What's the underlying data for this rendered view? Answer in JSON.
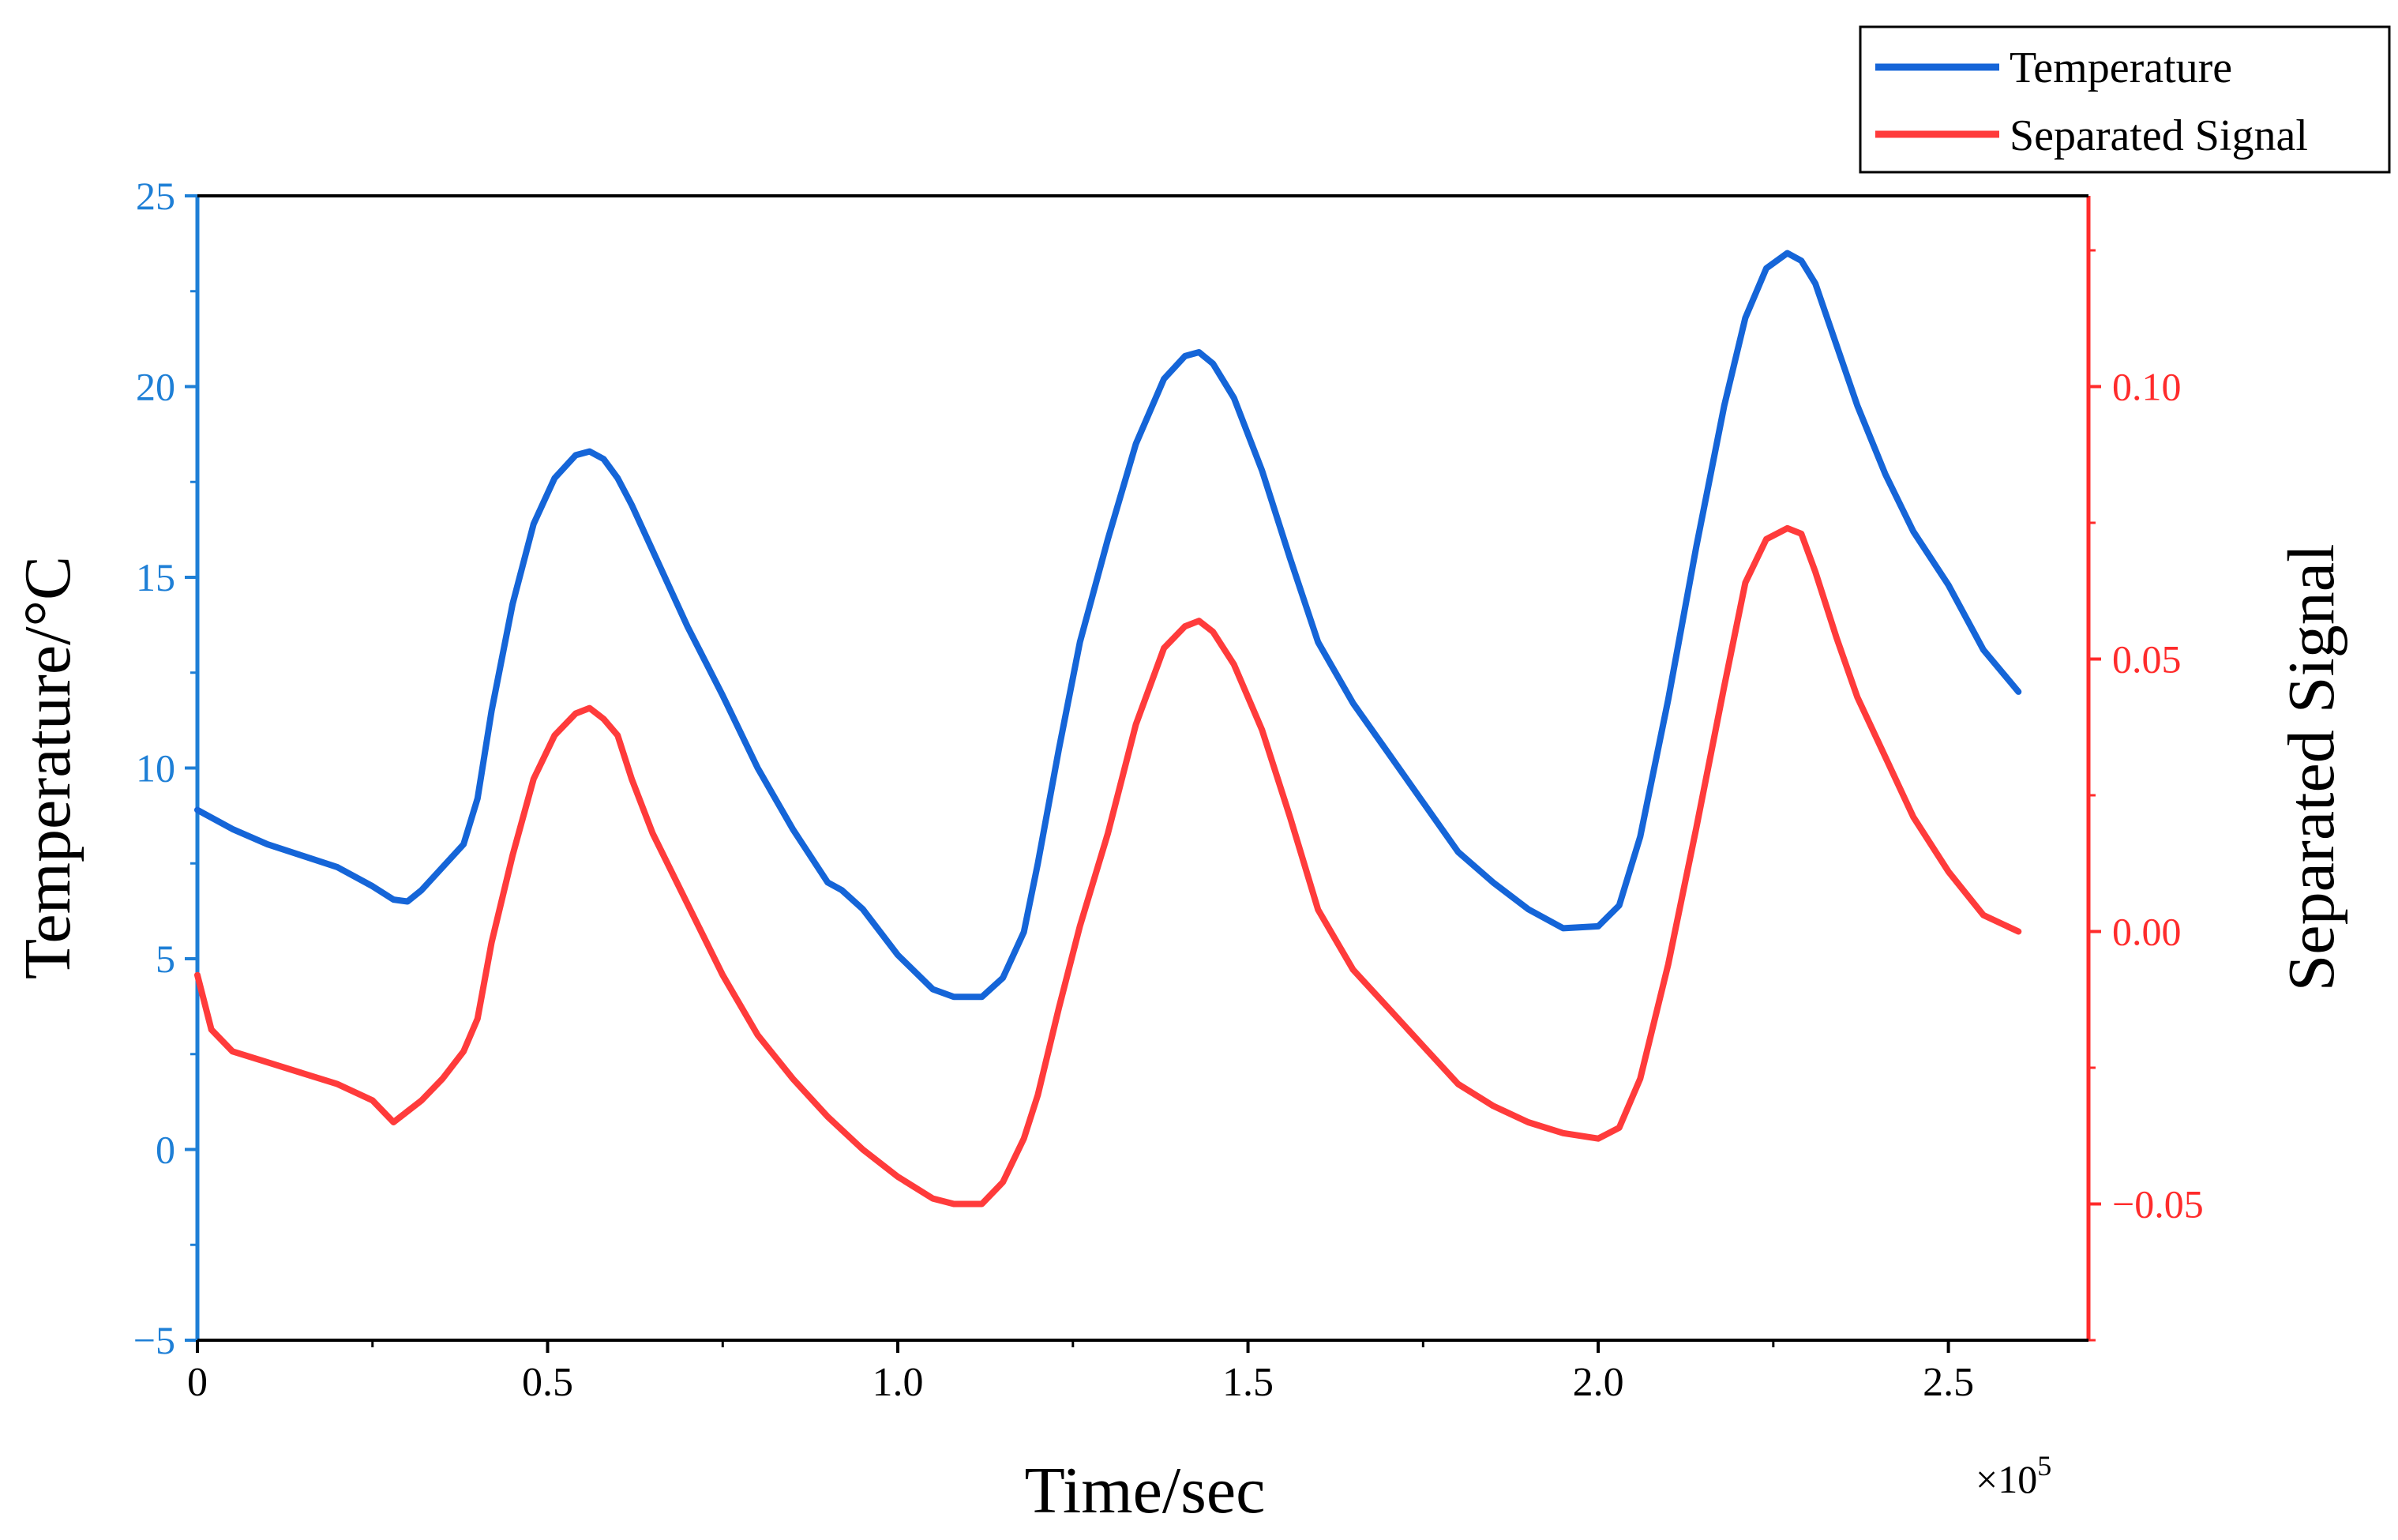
{
  "chart_data": {
    "type": "line",
    "title": "",
    "xlabel": "Time/sec",
    "ylabel_left": "Temperature/°C",
    "ylabel_right": "Separated Signal",
    "x_multiplier_label": "×10",
    "x_multiplier_exponent": "5",
    "xlim": [
      0,
      2.7
    ],
    "ylim_left": [
      -5,
      25
    ],
    "ylim_right": [
      -0.075,
      0.135
    ],
    "x_ticks": [
      {
        "value": 0,
        "label": "0"
      },
      {
        "value": 0.5,
        "label": "0.5"
      },
      {
        "value": 1.0,
        "label": "1.0"
      },
      {
        "value": 1.5,
        "label": "1.5"
      },
      {
        "value": 2.0,
        "label": "2.0"
      },
      {
        "value": 2.5,
        "label": "2.5"
      }
    ],
    "y_left_ticks": [
      {
        "value": -5,
        "label": "−5"
      },
      {
        "value": 0,
        "label": "0"
      },
      {
        "value": 5,
        "label": "5"
      },
      {
        "value": 10,
        "label": "10"
      },
      {
        "value": 15,
        "label": "15"
      },
      {
        "value": 20,
        "label": "20"
      },
      {
        "value": 25,
        "label": "25"
      }
    ],
    "y_right_ticks": [
      {
        "value": -0.05,
        "label": "−0.05"
      },
      {
        "value": 0.0,
        "label": "0.00"
      },
      {
        "value": 0.05,
        "label": "0.05"
      },
      {
        "value": 0.1,
        "label": "0.10"
      }
    ],
    "legend": {
      "position": "top-right"
    },
    "series": [
      {
        "name": "Temperature",
        "axis": "left",
        "color": "#1565d8",
        "x": [
          0,
          0.05,
          0.1,
          0.15,
          0.2,
          0.25,
          0.28,
          0.3,
          0.32,
          0.35,
          0.38,
          0.4,
          0.42,
          0.45,
          0.48,
          0.51,
          0.54,
          0.56,
          0.58,
          0.6,
          0.62,
          0.65,
          0.7,
          0.75,
          0.8,
          0.85,
          0.9,
          0.92,
          0.95,
          1.0,
          1.05,
          1.08,
          1.12,
          1.15,
          1.18,
          1.2,
          1.23,
          1.26,
          1.3,
          1.34,
          1.38,
          1.41,
          1.43,
          1.45,
          1.48,
          1.52,
          1.56,
          1.6,
          1.65,
          1.7,
          1.75,
          1.8,
          1.85,
          1.9,
          1.95,
          2.0,
          2.03,
          2.06,
          2.1,
          2.14,
          2.18,
          2.21,
          2.24,
          2.27,
          2.29,
          2.31,
          2.34,
          2.37,
          2.41,
          2.45,
          2.5,
          2.55,
          2.6
        ],
        "values": [
          8.9,
          8.4,
          8.0,
          7.7,
          7.4,
          6.9,
          6.55,
          6.5,
          6.8,
          7.4,
          8.0,
          9.2,
          11.5,
          14.3,
          16.4,
          17.6,
          18.2,
          18.3,
          18.1,
          17.6,
          16.9,
          15.7,
          13.7,
          11.9,
          10.0,
          8.4,
          7.0,
          6.8,
          6.3,
          5.1,
          4.2,
          4.0,
          4.0,
          4.5,
          5.7,
          7.5,
          10.5,
          13.3,
          16.0,
          18.5,
          20.2,
          20.8,
          20.9,
          20.6,
          19.7,
          17.8,
          15.5,
          13.3,
          11.7,
          10.4,
          9.1,
          7.8,
          7.0,
          6.3,
          5.8,
          5.85,
          6.4,
          8.2,
          11.8,
          15.8,
          19.5,
          21.8,
          23.1,
          23.5,
          23.3,
          22.7,
          21.1,
          19.5,
          17.7,
          16.2,
          14.8,
          13.1,
          12.0
        ]
      },
      {
        "name": "Separated Signal",
        "axis": "right",
        "color": "#ff3b3b",
        "x": [
          0,
          0.02,
          0.05,
          0.1,
          0.15,
          0.2,
          0.25,
          0.28,
          0.3,
          0.32,
          0.35,
          0.38,
          0.4,
          0.42,
          0.45,
          0.48,
          0.51,
          0.54,
          0.56,
          0.58,
          0.6,
          0.62,
          0.65,
          0.7,
          0.75,
          0.8,
          0.85,
          0.9,
          0.95,
          1.0,
          1.05,
          1.08,
          1.12,
          1.15,
          1.18,
          1.2,
          1.23,
          1.26,
          1.3,
          1.34,
          1.38,
          1.41,
          1.43,
          1.45,
          1.48,
          1.52,
          1.56,
          1.6,
          1.65,
          1.7,
          1.75,
          1.8,
          1.85,
          1.9,
          1.95,
          2.0,
          2.03,
          2.06,
          2.1,
          2.14,
          2.18,
          2.21,
          2.24,
          2.27,
          2.29,
          2.31,
          2.34,
          2.37,
          2.41,
          2.45,
          2.5,
          2.55,
          2.6
        ],
        "values": [
          -0.008,
          -0.018,
          -0.022,
          -0.024,
          -0.026,
          -0.028,
          -0.031,
          -0.035,
          -0.033,
          -0.031,
          -0.027,
          -0.022,
          -0.016,
          -0.002,
          0.014,
          0.028,
          0.036,
          0.04,
          0.041,
          0.039,
          0.036,
          0.028,
          0.018,
          0.005,
          -0.008,
          -0.019,
          -0.027,
          -0.034,
          -0.04,
          -0.045,
          -0.049,
          -0.05,
          -0.05,
          -0.046,
          -0.038,
          -0.03,
          -0.014,
          0.001,
          0.018,
          0.038,
          0.052,
          0.056,
          0.057,
          0.055,
          0.049,
          0.037,
          0.021,
          0.004,
          -0.007,
          -0.014,
          -0.021,
          -0.028,
          -0.032,
          -0.035,
          -0.037,
          -0.038,
          -0.036,
          -0.027,
          -0.006,
          0.019,
          0.045,
          0.064,
          0.072,
          0.074,
          0.073,
          0.066,
          0.054,
          0.043,
          0.032,
          0.021,
          0.011,
          0.003,
          0.0
        ]
      }
    ]
  }
}
